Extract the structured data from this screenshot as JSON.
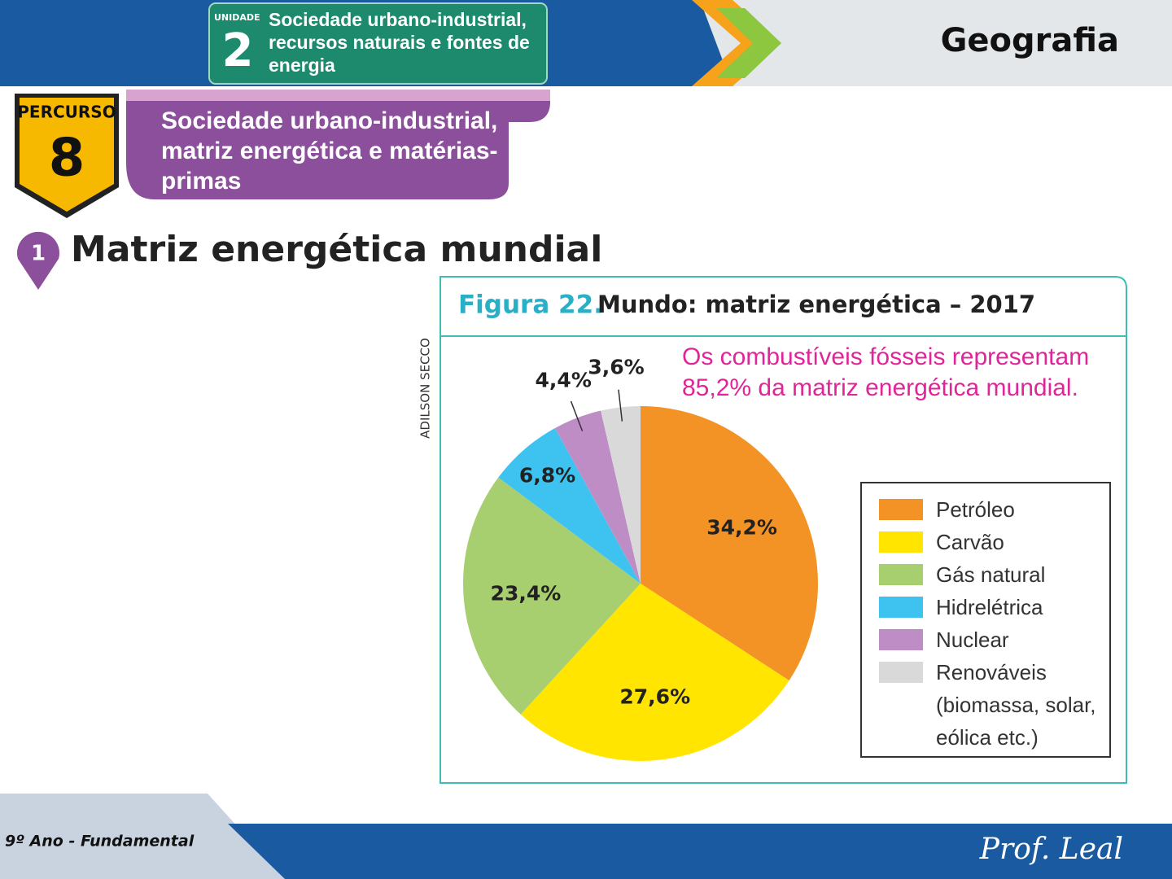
{
  "header": {
    "unit_label": "UNIDADE",
    "unit_number": "2",
    "unit_title": "Sociedade urbano-industrial, recursos naturais e fontes de energia",
    "subject": "Geografia"
  },
  "route": {
    "label": "PERCURSO",
    "number": "8",
    "title": "Sociedade urbano-industrial, matriz energética e matérias-primas"
  },
  "section": {
    "number": "1",
    "title": "Matriz energética mundial"
  },
  "chart_data": {
    "type": "pie",
    "figure_label": "Figura 22.",
    "title": "Mundo: matriz energética – 2017",
    "credit": "ADILSON SECCO",
    "annotation": "Os combustíveis fósseis representam 85,2% da matriz energética mundial.",
    "categories": [
      "Petróleo",
      "Carvão",
      "Gás natural",
      "Hidrelétrica",
      "Nuclear",
      "Renováveis (biomassa, solar, eólica etc.)"
    ],
    "values": [
      34.2,
      27.6,
      23.4,
      6.8,
      4.4,
      3.6
    ],
    "value_labels": [
      "34,2%",
      "27,6%",
      "23,4%",
      "6,8%",
      "4,4%",
      "3,6%"
    ],
    "colors": [
      "#f39325",
      "#ffe500",
      "#a8cf6f",
      "#3ec3f0",
      "#bf8dc6",
      "#d9d9d9"
    ]
  },
  "footer": {
    "grade": "9º Ano - Fundamental",
    "author": "Prof. Leal"
  }
}
